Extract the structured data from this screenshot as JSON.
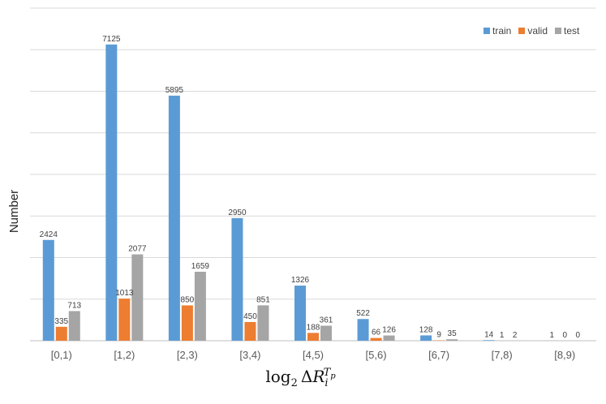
{
  "chart_data": {
    "type": "bar",
    "categories": [
      "[0,1)",
      "[1,2)",
      "[2,3)",
      "[3,4)",
      "[4,5)",
      "[5,6)",
      "[6,7)",
      "[7,8)",
      "[8,9)"
    ],
    "series": [
      {
        "name": "train",
        "values": [
          2424,
          7125,
          5895,
          2950,
          1326,
          522,
          128,
          14,
          1
        ],
        "color": "#5b9bd5"
      },
      {
        "name": "valid",
        "values": [
          335,
          1013,
          850,
          450,
          188,
          66,
          9,
          1,
          0
        ],
        "color": "#ed7d31"
      },
      {
        "name": "test",
        "values": [
          713,
          2077,
          1659,
          851,
          361,
          126,
          35,
          2,
          0
        ],
        "color": "#a5a5a5"
      }
    ],
    "xlabel": "log₂ ΔR_i^(T_p)",
    "ylabel": "Number",
    "ylim": [
      0,
      8000
    ],
    "grid": true,
    "legend_position": "top-right"
  }
}
